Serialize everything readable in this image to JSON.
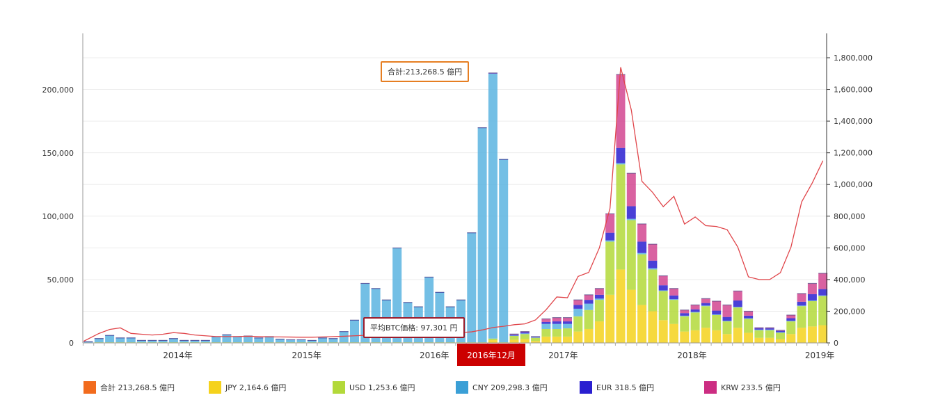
{
  "chart_data": {
    "type": "bar",
    "stacked": true,
    "title": "",
    "xlabel": "",
    "ylabel": "",
    "y_left": {
      "range": [
        0,
        200000
      ],
      "ticks": [
        "0",
        "50,000",
        "100,000",
        "150,000",
        "200,000"
      ],
      "tick_values": [
        0,
        50000,
        100000,
        150000,
        200000
      ]
    },
    "y_right": {
      "range": [
        0,
        1800000
      ],
      "ticks": [
        "0",
        "200,000",
        "400,000",
        "600,000",
        "800,000",
        "1,000,000",
        "1,200,000",
        "1,400,000",
        "1,600,000",
        "1,800,000"
      ],
      "tick_values": [
        0,
        200000,
        400000,
        600000,
        800000,
        1000000,
        1200000,
        1400000,
        1600000,
        1800000
      ]
    },
    "grid": true,
    "legend_placement": "bottom",
    "x_ticks": [
      {
        "label": "2014年",
        "at": 8.4
      },
      {
        "label": "2015年",
        "at": 20.5
      },
      {
        "label": "2016年",
        "at": 32.5
      },
      {
        "label": "2017年",
        "at": 44.6
      },
      {
        "label": "2018年",
        "at": 56.7
      },
      {
        "label": "2019年",
        "at": 68.7
      }
    ],
    "categories": [
      "2013-10",
      "2013-11",
      "2013-12",
      "2014-01",
      "2014-02",
      "2014-03",
      "2014-04",
      "2014-05",
      "2014-06",
      "2014-07",
      "2014-08",
      "2014-09",
      "2014-10",
      "2014-11",
      "2014-12",
      "2015-01",
      "2015-02",
      "2015-03",
      "2015-04",
      "2015-05",
      "2015-06",
      "2015-07",
      "2015-08",
      "2015-09",
      "2015-10",
      "2015-11",
      "2015-12",
      "2016-01",
      "2016-02",
      "2016-03",
      "2016-04",
      "2016-05",
      "2016-06",
      "2016-07",
      "2016-08",
      "2016-09",
      "2016-10",
      "2016-11",
      "2016-12",
      "2017-01",
      "2017-02",
      "2017-03",
      "2017-04",
      "2017-05",
      "2017-06",
      "2017-07",
      "2017-08",
      "2017-09",
      "2017-10",
      "2017-11",
      "2017-12",
      "2018-01",
      "2018-02",
      "2018-03",
      "2018-04",
      "2018-05",
      "2018-06",
      "2018-07",
      "2018-08",
      "2018-09",
      "2018-10",
      "2018-11",
      "2018-12",
      "2019-01",
      "2019-02",
      "2019-03",
      "2019-04",
      "2019-05",
      "2019-06",
      "2019-07"
    ],
    "series": [
      {
        "name": "JPY",
        "color": "#f5d21c",
        "axis": "left",
        "values": [
          100,
          200,
          200,
          200,
          200,
          200,
          200,
          200,
          200,
          200,
          200,
          200,
          200,
          200,
          200,
          200,
          200,
          200,
          200,
          200,
          200,
          200,
          200,
          200,
          200,
          200,
          200,
          200,
          200,
          200,
          200,
          200,
          200,
          200,
          200,
          200,
          200,
          200,
          2164.6,
          200,
          2500,
          3000,
          1500,
          5000,
          5000,
          5000,
          9000,
          11000,
          17000,
          38000,
          58000,
          42000,
          30000,
          25000,
          18000,
          15000,
          9000,
          10000,
          12000,
          10000,
          7000,
          12000,
          8000,
          4000,
          4000,
          3000,
          7000,
          12000,
          13000,
          14000
        ]
      },
      {
        "name": "USD",
        "color": "#b3d93a",
        "axis": "left",
        "values": [
          200,
          300,
          300,
          300,
          300,
          300,
          300,
          300,
          300,
          300,
          300,
          300,
          300,
          300,
          300,
          300,
          300,
          300,
          300,
          300,
          300,
          300,
          300,
          300,
          300,
          300,
          300,
          300,
          300,
          300,
          300,
          300,
          300,
          300,
          300,
          300,
          300,
          300,
          1253.6,
          300,
          3000,
          4000,
          2500,
          6000,
          6000,
          6500,
          12000,
          15000,
          17000,
          42000,
          83000,
          55000,
          40000,
          33000,
          23000,
          19000,
          12000,
          14000,
          17000,
          12000,
          10000,
          16000,
          11000,
          6000,
          6000,
          5000,
          10000,
          17000,
          20000,
          23000
        ]
      },
      {
        "name": "CNY",
        "color": "#5ab4e0",
        "axis": "left",
        "values": [
          650,
          2950,
          5450,
          3450,
          3450,
          1450,
          1450,
          1450,
          2950,
          1450,
          1450,
          1450,
          4450,
          5950,
          4450,
          4950,
          3450,
          4450,
          2450,
          1950,
          1950,
          1450,
          3450,
          2950,
          8450,
          17450,
          46450,
          42450,
          33450,
          74450,
          31450,
          28050,
          51450,
          39450,
          28050,
          33450,
          86450,
          169450,
          209298.3,
          144450,
          300,
          500,
          300,
          4000,
          4000,
          3500,
          6000,
          5000,
          1000,
          1000,
          1000,
          1000,
          1000,
          1000,
          500,
          500,
          500,
          500,
          500,
          500,
          500,
          500,
          500,
          500,
          500,
          500,
          500,
          500,
          500,
          500
        ]
      },
      {
        "name": "EUR",
        "color": "#2a1fd0",
        "axis": "left",
        "values": [
          50,
          50,
          50,
          50,
          50,
          50,
          50,
          50,
          50,
          50,
          50,
          50,
          50,
          50,
          50,
          50,
          50,
          50,
          50,
          50,
          50,
          50,
          50,
          50,
          50,
          50,
          50,
          50,
          50,
          50,
          50,
          50,
          50,
          50,
          50,
          50,
          50,
          50,
          318.5,
          50,
          700,
          1000,
          500,
          1500,
          2000,
          2000,
          3000,
          3000,
          3000,
          6000,
          12000,
          10000,
          9000,
          6000,
          4000,
          3000,
          2000,
          2000,
          2000,
          3000,
          3000,
          5000,
          2000,
          1000,
          1000,
          1000,
          2000,
          3000,
          5000,
          5000
        ]
      },
      {
        "name": "KRW",
        "color": "#cc2d82",
        "axis": "left",
        "values": [
          0,
          0,
          0,
          0,
          0,
          0,
          0,
          0,
          0,
          0,
          0,
          0,
          0,
          0,
          0,
          0,
          0,
          0,
          0,
          0,
          0,
          0,
          0,
          0,
          0,
          0,
          0,
          0,
          0,
          0,
          0,
          0,
          0,
          0,
          0,
          0,
          0,
          0,
          233.5,
          0,
          500,
          500,
          200,
          2500,
          3000,
          3000,
          4000,
          4000,
          5000,
          15000,
          58000,
          26000,
          14000,
          13000,
          7500,
          5500,
          2500,
          3500,
          3500,
          7500,
          9500,
          7500,
          3500,
          500,
          500,
          500,
          2500,
          6500,
          8500,
          12500
        ]
      }
    ],
    "line": {
      "name": "平均BTC価格",
      "color": "#e0454a",
      "axis": "right",
      "values": [
        10000,
        60000,
        85000,
        95000,
        60000,
        55000,
        50000,
        55000,
        65000,
        60000,
        50000,
        45000,
        40000,
        40000,
        40000,
        42000,
        40000,
        38000,
        38000,
        37000,
        36000,
        36000,
        38000,
        40000,
        42000,
        45000,
        48000,
        50000,
        52000,
        55000,
        55000,
        55000,
        58000,
        60000,
        62000,
        65000,
        70000,
        82000,
        97301,
        105000,
        115000,
        120000,
        145000,
        210000,
        290000,
        285000,
        420000,
        445000,
        600000,
        850000,
        1740000,
        1470000,
        1020000,
        950000,
        860000,
        925000,
        750000,
        795000,
        740000,
        735000,
        715000,
        605000,
        417000,
        400000,
        400000,
        443000,
        605000,
        890000,
        1010000,
        1150000
      ]
    },
    "highlight_index": 38
  },
  "tooltips": {
    "total": "合計:213,268.5 億円",
    "btc_price": "平均BTC価格: 97,301 円",
    "x_label": "2016年12月"
  },
  "legend": [
    {
      "label": "合計  213,268.5 億円",
      "color": "#f26b1d"
    },
    {
      "label": "JPY  2,164.6 億円",
      "color": "#f5d21c"
    },
    {
      "label": "USD  1,253.6 億円",
      "color": "#b3d93a"
    },
    {
      "label": "CNY  209,298.3 億円",
      "color": "#3a9fd6"
    },
    {
      "label": "EUR  318.5 億円",
      "color": "#2a1fd0"
    },
    {
      "label": "KRW  233.5 億円",
      "color": "#cc2d82"
    }
  ]
}
